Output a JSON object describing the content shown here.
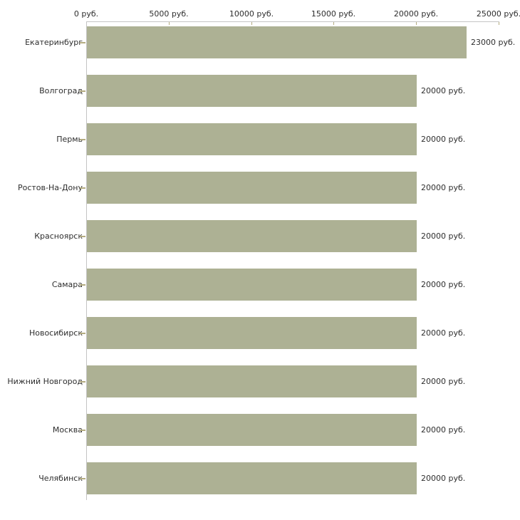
{
  "chart_data": {
    "type": "bar",
    "orientation": "horizontal",
    "title": "",
    "xlabel": "",
    "ylabel": "",
    "unit": "руб.",
    "xlim": [
      0,
      25000
    ],
    "grid": false,
    "legend": "none",
    "categories": [
      "Екатеринбург",
      "Волгоград",
      "Пермь",
      "Ростов-На-Дону",
      "Красноярск",
      "Самара",
      "Новосибирск",
      "Нижний Новгород",
      "Москва",
      "Челябинск"
    ],
    "values": [
      23000,
      20000,
      20000,
      20000,
      20000,
      20000,
      20000,
      20000,
      20000,
      20000
    ],
    "value_labels": [
      "23000 руб.",
      "20000 руб.",
      "20000 руб.",
      "20000 руб.",
      "20000 руб.",
      "20000 руб.",
      "20000 руб.",
      "20000 руб.",
      "20000 руб.",
      "20000 руб."
    ],
    "x_ticks": [
      {
        "value": 0,
        "label": "0 руб."
      },
      {
        "value": 5000,
        "label": "5000 руб."
      },
      {
        "value": 10000,
        "label": "10000 руб."
      },
      {
        "value": 15000,
        "label": "15000 руб."
      },
      {
        "value": 20000,
        "label": "20000 руб."
      },
      {
        "value": 25000,
        "label": "25000 руб."
      }
    ],
    "colors": {
      "bar": "#adb194",
      "axis_line": "#c4c4c4",
      "tick_mark": "#b4ac81",
      "text": "#2e2e2e",
      "background": "#ffffff"
    }
  }
}
